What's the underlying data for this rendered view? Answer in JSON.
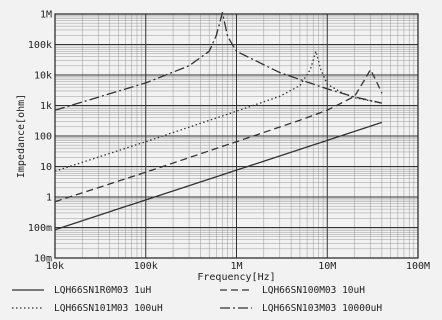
{
  "chart_data": {
    "type": "line",
    "xlabel": "Frequency[Hz]",
    "ylabel": "Impedance[ohm]",
    "x_scale": "log",
    "y_scale": "log",
    "xlim": [
      10000,
      100000000
    ],
    "ylim": [
      0.01,
      1000000
    ],
    "x_ticks": [
      10000,
      100000,
      1000000,
      10000000,
      100000000
    ],
    "x_tick_labels": [
      "10k",
      "100k",
      "1M",
      "10M",
      "100M"
    ],
    "y_ticks": [
      0.01,
      0.1,
      1,
      10,
      100,
      1000,
      10000,
      100000,
      1000000
    ],
    "y_tick_labels": [
      "10m",
      "100m",
      "1",
      "10",
      "100",
      "1k",
      "10k",
      "100k",
      "1M"
    ],
    "grid": true,
    "legend_position": "bottom",
    "series": [
      {
        "name": "LQH66SN1R0M03 1uH",
        "style": "solid",
        "color": "#333333",
        "x": [
          10000,
          40000000
        ],
        "y": [
          0.085,
          280
        ]
      },
      {
        "name": "LQH66SN100M03 10uH",
        "style": "dashed",
        "color": "#333333",
        "x": [
          10000,
          100000,
          1000000,
          5000000,
          10000000,
          20000000,
          25000000,
          30000000,
          35000000,
          40000000
        ],
        "y": [
          0.7,
          6.5,
          65,
          330,
          700,
          2000,
          6000,
          15000,
          6000,
          2500
        ]
      },
      {
        "name": "LQH66SN101M03 100uH",
        "style": "dotted",
        "color": "#333333",
        "x": [
          10000,
          100000,
          1000000,
          3000000,
          5000000,
          6500000,
          7500000,
          8500000,
          10000000,
          15000000,
          20000000,
          40000000
        ],
        "y": [
          7,
          65,
          650,
          2000,
          4500,
          15000,
          60000,
          15000,
          5000,
          2500,
          1800,
          1200
        ]
      },
      {
        "name": "LQH66SN103M03 10000uH",
        "style": "dash-dot",
        "color": "#333333",
        "x": [
          10000,
          100000,
          300000,
          500000,
          600000,
          700000,
          800000,
          1000000,
          3000000,
          10000000,
          20000000,
          40000000
        ],
        "y": [
          700,
          5500,
          20000,
          60000,
          200000,
          1100000,
          180000,
          60000,
          12000,
          3500,
          1900,
          1200
        ]
      }
    ]
  }
}
